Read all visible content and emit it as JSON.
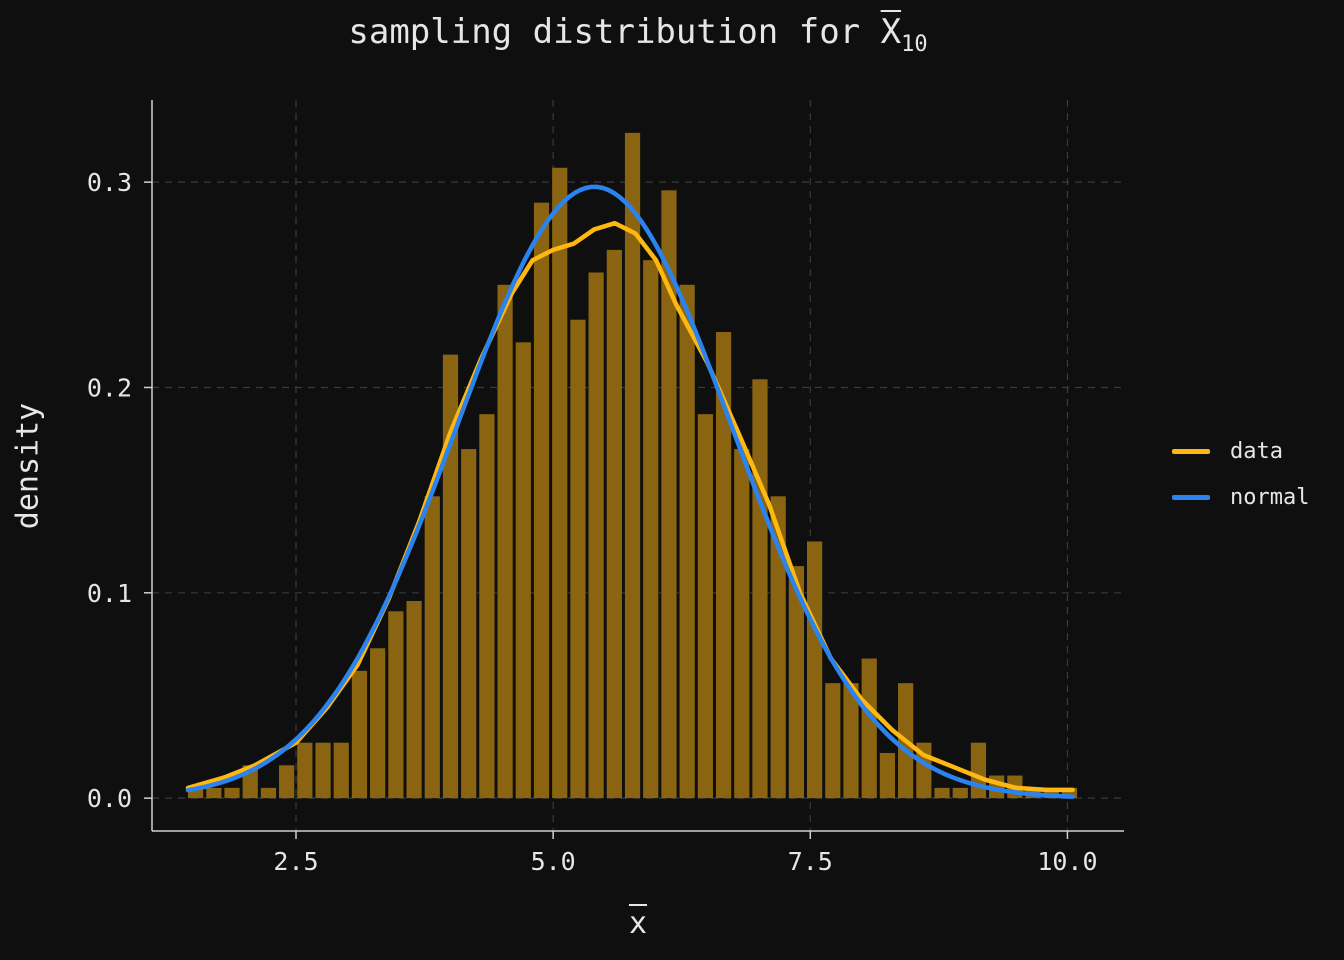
{
  "chart_data": {
    "type": "histogram+line",
    "title": {
      "prefix": "sampling distribution for ",
      "symbol": "X",
      "subscript": "10"
    },
    "xlabel": "x",
    "ylabel": "density",
    "xlim": [
      1.1,
      10.55
    ],
    "ylim": [
      -0.016,
      0.34
    ],
    "xticks": [
      2.5,
      5.0,
      7.5,
      10.0
    ],
    "xtick_labels": [
      "2.5",
      "5.0",
      "7.5",
      "10.0"
    ],
    "yticks": [
      0.0,
      0.1,
      0.2,
      0.3
    ],
    "ytick_labels": [
      "0.0",
      "0.1",
      "0.2",
      "0.3"
    ],
    "grid": true,
    "legend_position": "right",
    "histogram": {
      "bin_start": 1.45,
      "bin_width": 0.177,
      "color": "#8a6410",
      "density": [
        0.005,
        0.005,
        0.005,
        0.016,
        0.005,
        0.016,
        0.027,
        0.027,
        0.027,
        0.062,
        0.073,
        0.091,
        0.096,
        0.147,
        0.216,
        0.17,
        0.187,
        0.25,
        0.222,
        0.29,
        0.307,
        0.233,
        0.256,
        0.267,
        0.324,
        0.262,
        0.296,
        0.25,
        0.187,
        0.227,
        0.17,
        0.204,
        0.147,
        0.113,
        0.125,
        0.056,
        0.056,
        0.068,
        0.022,
        0.056,
        0.027,
        0.005,
        0.005,
        0.027,
        0.011,
        0.011,
        0.005,
        0.005,
        0.005
      ]
    },
    "series": [
      {
        "name": "data",
        "color": "#ffb80f",
        "x": [
          1.45,
          1.8,
          2.1,
          2.5,
          2.8,
          3.1,
          3.4,
          3.7,
          4.0,
          4.3,
          4.6,
          4.8,
          5.0,
          5.2,
          5.4,
          5.6,
          5.8,
          6.0,
          6.2,
          6.5,
          6.8,
          7.1,
          7.4,
          7.7,
          8.0,
          8.3,
          8.6,
          8.9,
          9.2,
          9.5,
          9.8,
          10.05
        ],
        "y": [
          0.005,
          0.01,
          0.016,
          0.027,
          0.044,
          0.065,
          0.097,
          0.135,
          0.178,
          0.214,
          0.246,
          0.262,
          0.267,
          0.27,
          0.277,
          0.28,
          0.275,
          0.262,
          0.24,
          0.212,
          0.178,
          0.143,
          0.1,
          0.068,
          0.048,
          0.033,
          0.021,
          0.015,
          0.009,
          0.005,
          0.004,
          0.004
        ]
      },
      {
        "name": "normal",
        "color": "#2b83f0",
        "mean": 5.4,
        "sd": 1.34,
        "x_range": [
          1.45,
          10.05
        ]
      }
    ]
  }
}
